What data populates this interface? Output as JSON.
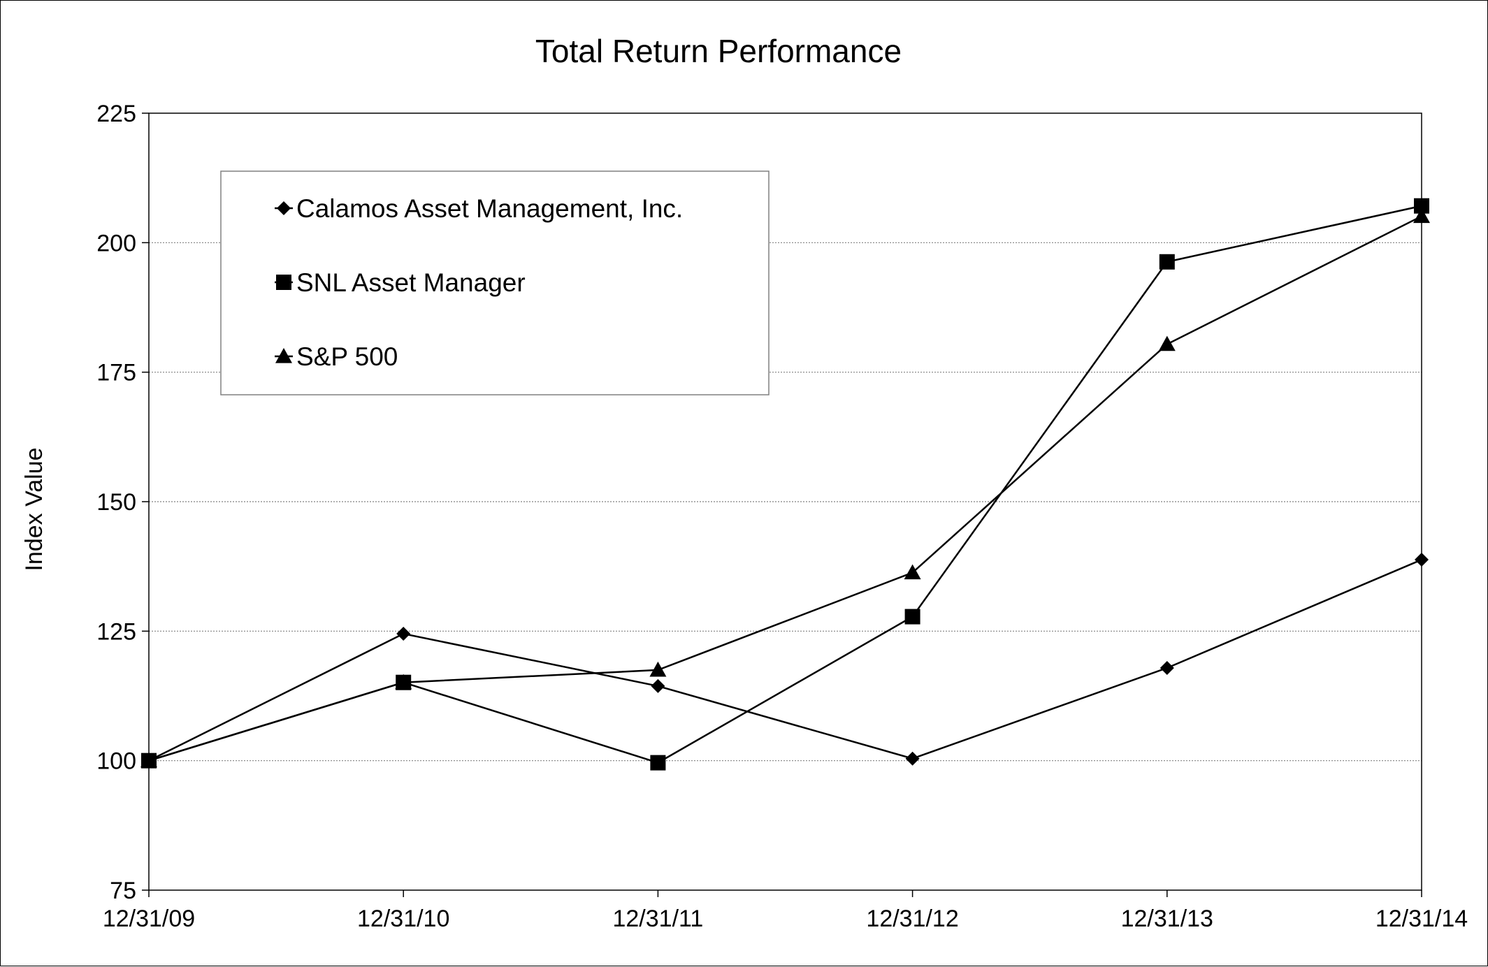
{
  "chart_data": {
    "type": "line",
    "title": "Total Return Performance",
    "xlabel": "",
    "ylabel": "Index Value",
    "categories": [
      "12/31/09",
      "12/31/10",
      "12/31/11",
      "12/31/12",
      "12/31/13",
      "12/31/14"
    ],
    "ylim": [
      75,
      225
    ],
    "yticks": [
      "75",
      "100",
      "125",
      "150",
      "175",
      "200",
      "225"
    ],
    "grid": true,
    "legend_position": "top-left",
    "series": [
      {
        "name": "Calamos Asset Management, Inc.",
        "marker": "diamond",
        "color": "#000000",
        "values": [
          100,
          124.5,
          114.4,
          100.4,
          117.9,
          138.8
        ]
      },
      {
        "name": "SNL Asset Manager",
        "marker": "square",
        "color": "#000000",
        "values": [
          100,
          115.1,
          99.6,
          127.8,
          196.3,
          207.1
        ]
      },
      {
        "name": "S&P 500",
        "marker": "triangle",
        "color": "#000000",
        "values": [
          100,
          115.1,
          117.5,
          136.3,
          180.4,
          205.1
        ]
      }
    ]
  }
}
